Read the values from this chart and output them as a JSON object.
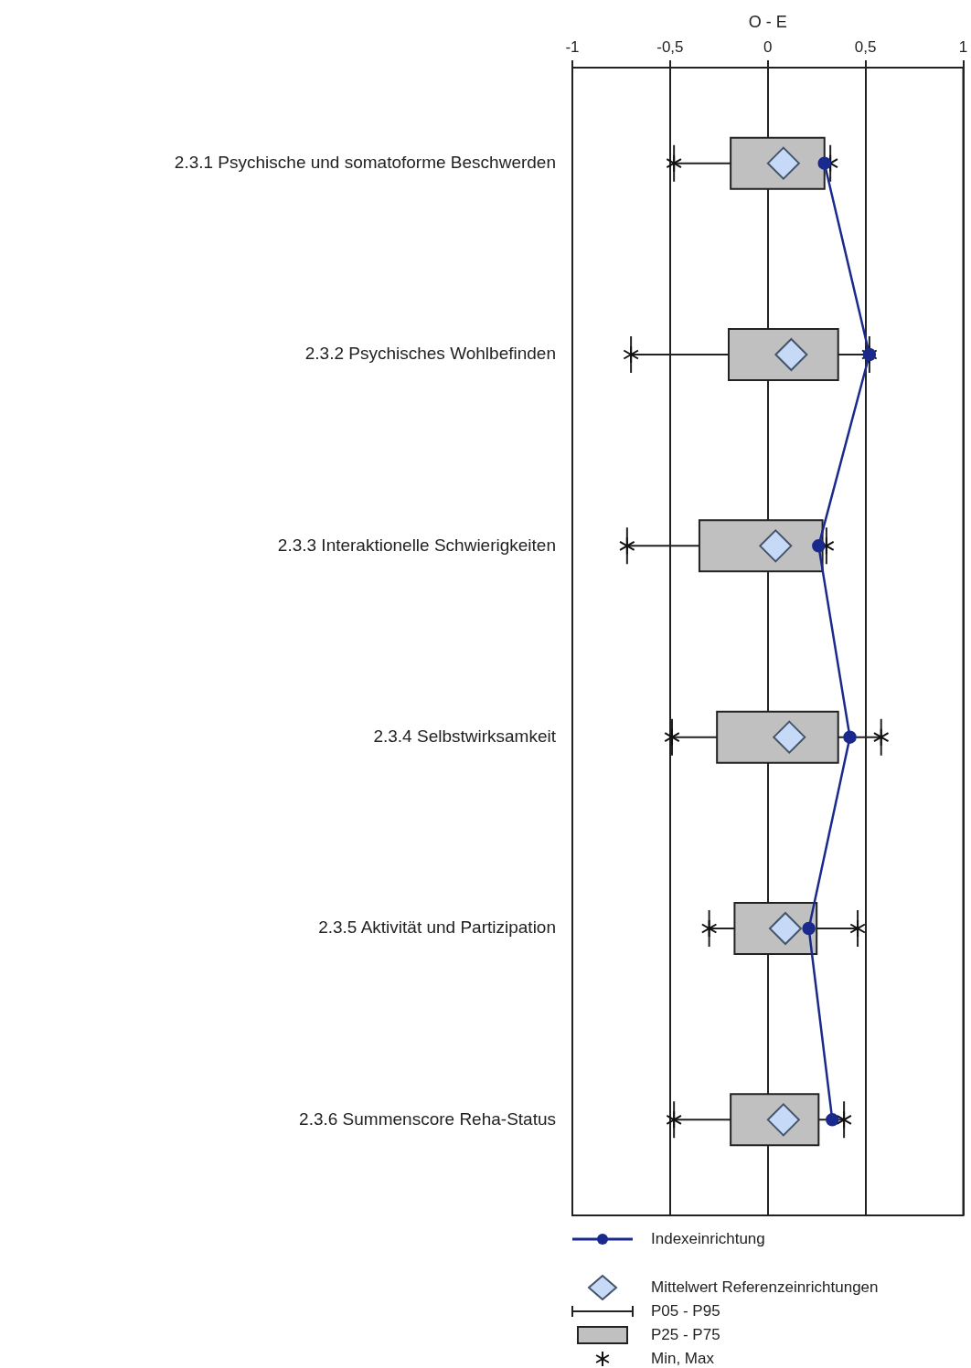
{
  "chart_data": {
    "type": "box",
    "orientation": "horizontal",
    "xlabel": "O - E",
    "categories": [
      "2.3.1 Psychische und somatoforme Beschwerden",
      "2.3.2 Psychisches Wohlbefinden",
      "2.3.3 Interaktionelle Schwierigkeiten",
      "2.3.4 Selbstwirksamkeit",
      "2.3.5 Aktivität und Partizipation",
      "2.3.6 Summenscore Reha-Status"
    ],
    "xlim": [
      -1,
      1
    ],
    "xticks": [
      {
        "value": -1,
        "label": "-1"
      },
      {
        "value": -0.5,
        "label": "-0,5"
      },
      {
        "value": 0,
        "label": "0"
      },
      {
        "value": 0.5,
        "label": "0,5"
      },
      {
        "value": 1,
        "label": "1"
      }
    ],
    "grid": "x",
    "legend": "bottom left",
    "series": [
      {
        "type": "box",
        "color": "#c0c0c0",
        "boxes": [
          {
            "low": -0.48,
            "q1": -0.19,
            "q3": 0.29,
            "high": 0.32,
            "mean": 0.08
          },
          {
            "low": -0.7,
            "q1": -0.2,
            "q3": 0.36,
            "high": 0.52,
            "mean": 0.12
          },
          {
            "low": -0.72,
            "q1": -0.35,
            "q3": 0.28,
            "high": 0.3,
            "mean": 0.04
          },
          {
            "low": -0.49,
            "q1": -0.26,
            "q3": 0.36,
            "high": 0.58,
            "mean": 0.11
          },
          {
            "low": -0.3,
            "q1": -0.17,
            "q3": 0.25,
            "high": 0.46,
            "mean": 0.09
          },
          {
            "low": -0.48,
            "q1": -0.19,
            "q3": 0.26,
            "high": 0.39,
            "mean": 0.08
          }
        ]
      },
      {
        "type": "line",
        "name": "Indexeinrichtung",
        "color": "#1a2a8c",
        "marker": "circle",
        "values": [
          0.29,
          0.52,
          0.26,
          0.42,
          0.21,
          0.33
        ]
      }
    ],
    "annotations": [
      "Mittelwert Referenzeinrichtungen",
      "P05 - P95",
      "P25 - P75",
      "Min, Max"
    ]
  }
}
